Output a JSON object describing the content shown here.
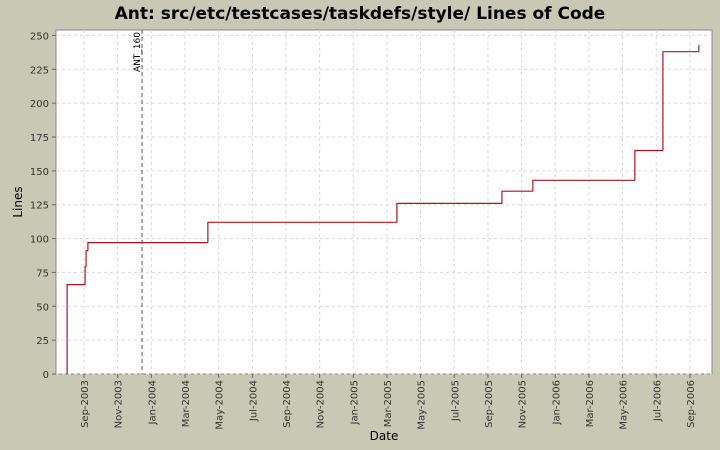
{
  "chart_data": {
    "type": "step",
    "title": "Ant: src/etc/testcases/taskdefs/style/ Lines of Code",
    "x_label": "Date",
    "y_label": "Lines",
    "x": [
      2003.583,
      2003.583,
      2003.672,
      2003.677,
      2003.686,
      2004.28,
      2005.216,
      2005.736,
      2005.889,
      2006.394,
      2006.533,
      2006.711
    ],
    "series": [
      {
        "name": "Lines",
        "color": "#b0141e",
        "values": [
          0,
          66,
          79,
          91,
          97,
          112,
          126,
          135,
          143,
          165,
          238,
          243
        ]
      }
    ],
    "markers": [
      {
        "x": 2003.954,
        "label": "ANT_160"
      }
    ],
    "xlim": [
      2003.528,
      2006.776
    ],
    "xticks": [
      {
        "value": 2003.6667,
        "label": "Sep-2003"
      },
      {
        "value": 2003.8333,
        "label": "Nov-2003"
      },
      {
        "value": 2004.0,
        "label": "Jan-2004"
      },
      {
        "value": 2004.1667,
        "label": "Mar-2004"
      },
      {
        "value": 2004.3333,
        "label": "May-2004"
      },
      {
        "value": 2004.5,
        "label": "Jul-2004"
      },
      {
        "value": 2004.6667,
        "label": "Sep-2004"
      },
      {
        "value": 2004.8333,
        "label": "Nov-2004"
      },
      {
        "value": 2005.0,
        "label": "Jan-2005"
      },
      {
        "value": 2005.1667,
        "label": "Mar-2005"
      },
      {
        "value": 2005.3333,
        "label": "May-2005"
      },
      {
        "value": 2005.5,
        "label": "Jul-2005"
      },
      {
        "value": 2005.6667,
        "label": "Sep-2005"
      },
      {
        "value": 2005.8333,
        "label": "Nov-2005"
      },
      {
        "value": 2006.0,
        "label": "Jan-2006"
      },
      {
        "value": 2006.1667,
        "label": "Mar-2006"
      },
      {
        "value": 2006.3333,
        "label": "May-2006"
      },
      {
        "value": 2006.5,
        "label": "Jul-2006"
      },
      {
        "value": 2006.6667,
        "label": "Sep-2006"
      }
    ],
    "ylim": [
      0,
      254
    ],
    "yticks": [
      0,
      25,
      50,
      75,
      100,
      125,
      150,
      175,
      200,
      225,
      250
    ],
    "grid": true
  }
}
